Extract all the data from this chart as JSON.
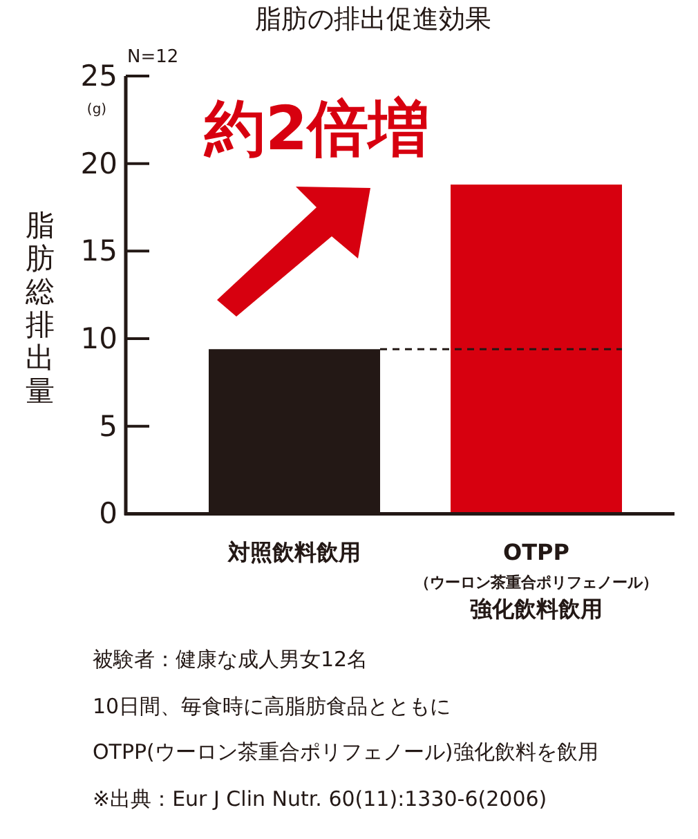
{
  "chart_data": {
    "type": "bar",
    "title": "脂肪の排出促進効果",
    "ylabel": "脂肪総排出量",
    "categories": [
      "対照飲料飲用",
      "OTPP\n（ウーロン茶重合ポリフェノール）強化飲料飲用"
    ],
    "values": [
      9.4,
      18.8
    ],
    "colors": [
      "#231815",
      "#d7000f"
    ],
    "ylim": [
      0,
      25
    ],
    "yticks": [
      0,
      5,
      10,
      15,
      20,
      25
    ],
    "grid": false,
    "ref_lines": [
      {
        "axis": "y",
        "value": 9.4,
        "label": null,
        "color": "#231815",
        "line_style": "dashed"
      }
    ],
    "annotations": [
      "N=12",
      "(g)",
      "約2倍増",
      "被験者：健康な成人男女12名",
      "10日間、毎食時に高脂肪食品とともに",
      "OTPP(ウーロン茶重合ポリフェノール)強化飲料を飲用",
      "※出典：Eur J Clin Nutr. 60(11):1330-6(2006)"
    ]
  }
}
